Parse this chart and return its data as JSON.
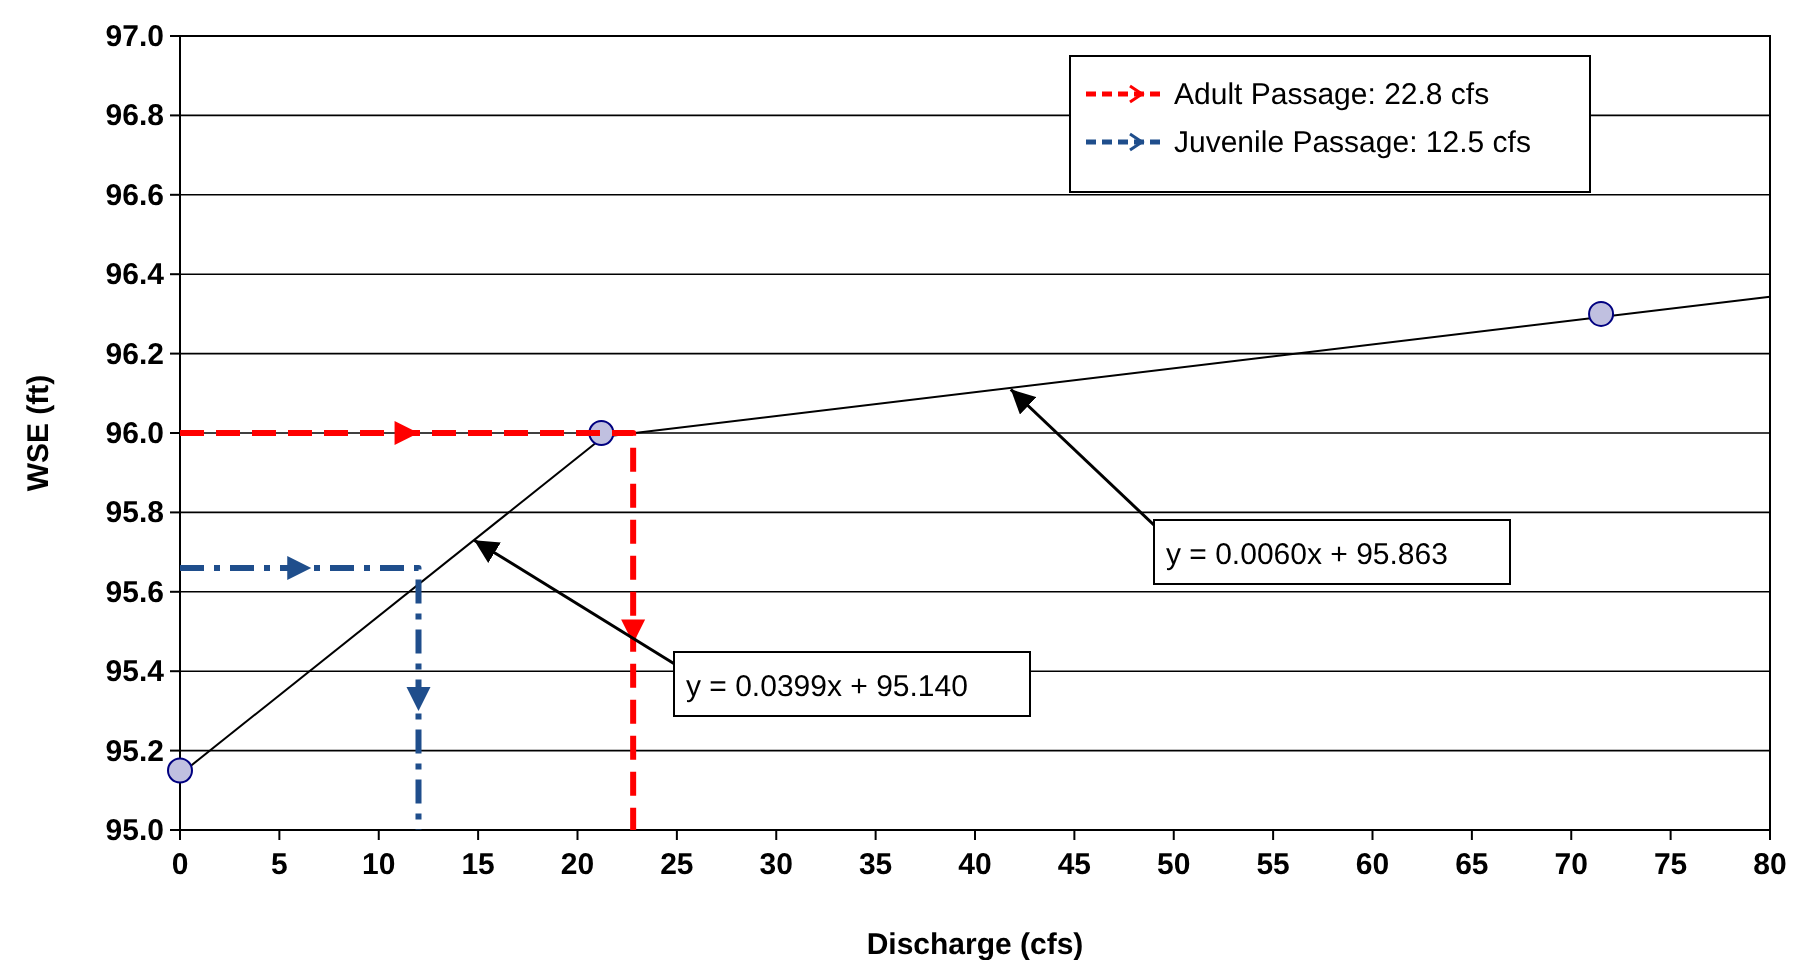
{
  "chart_data": {
    "type": "line",
    "xlabel": "Discharge (cfs)",
    "ylabel": "WSE (ft)",
    "xlim": [
      0,
      80
    ],
    "xticks": [
      0,
      5,
      10,
      15,
      20,
      25,
      30,
      35,
      40,
      45,
      50,
      55,
      60,
      65,
      70,
      75,
      80
    ],
    "ylim": [
      95,
      97
    ],
    "yticks": [
      {
        "value": 95,
        "label": "95.0"
      },
      95.2,
      95.4,
      95.6,
      95.8,
      {
        "value": 96,
        "label": "96.0"
      },
      96.2,
      96.4,
      96.6,
      96.8,
      {
        "value": 97,
        "label": "97.0"
      }
    ],
    "grid": "y",
    "legend": "top right",
    "series": [
      {
        "color": "#000000",
        "x": [
          0,
          21.2
        ],
        "values": [
          95.14,
          95.986
        ]
      },
      {
        "color": "#000000",
        "x": [
          21.2,
          80
        ],
        "values": [
          95.99,
          96.343
        ]
      },
      {
        "type": "scatter",
        "color": "#c0c0e0",
        "marker": "circle",
        "x": [
          0,
          21.2,
          71.5
        ],
        "values": [
          95.15,
          96.0,
          96.3
        ]
      },
      {
        "name": "Adult Passage: 22.8 cfs",
        "color": "#ff0000",
        "line_style": "dashed",
        "x": [
          0,
          22.8,
          22.8
        ],
        "values": [
          96.0,
          96.0,
          95.0
        ]
      },
      {
        "name": "Juvenile Passage: 12.5 cfs",
        "color": "#1f4e8c",
        "line_style": "dashed",
        "x": [
          0,
          12,
          12
        ],
        "values": [
          95.66,
          95.66,
          95.0
        ]
      }
    ],
    "annotations": [
      {
        "text": "y = 0.0399x + 95.140",
        "x": 14.8,
        "y": 95.73
      },
      {
        "text": "y = 0.0060x + 95.863",
        "x": 41.8,
        "y": 96.11
      }
    ]
  }
}
